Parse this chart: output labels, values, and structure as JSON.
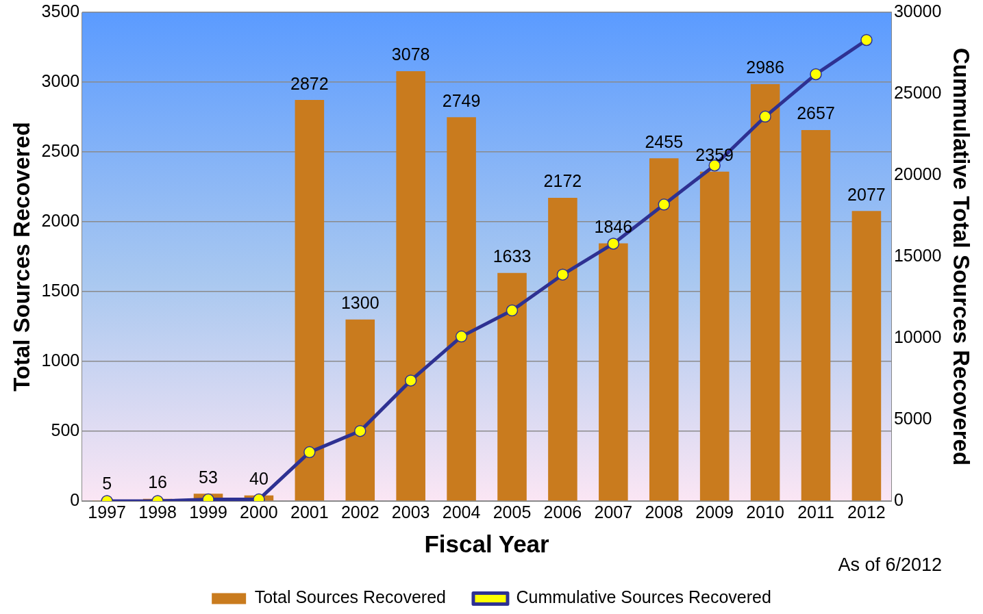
{
  "chart_data": {
    "type": "bar",
    "xlabel": "Fiscal Year",
    "ylabel": "Total Sources Recovered",
    "y2label": "Cummulative Total Sources Recovered",
    "categories": [
      "1997",
      "1998",
      "1999",
      "2000",
      "2001",
      "2002",
      "2003",
      "2004",
      "2005",
      "2006",
      "2007",
      "2008",
      "2009",
      "2010",
      "2011",
      "2012"
    ],
    "series": [
      {
        "name": "Total Sources Recovered",
        "color": "#c97b1e",
        "values": [
          5,
          16,
          53,
          40,
          2872,
          1300,
          3078,
          2749,
          1633,
          2172,
          1846,
          2455,
          2359,
          2986,
          2657,
          2077
        ],
        "value_labels": [
          "5",
          "16",
          "53",
          "40",
          "2872",
          "1300",
          "3078",
          "2749",
          "1633",
          "2172",
          "1846",
          "2455",
          "2359",
          "2986",
          "2657",
          "2077"
        ]
      },
      {
        "name": "Cummulative Sources Recovered",
        "type": "line",
        "axis": "y2",
        "color": "#2e3192",
        "marker": "circle",
        "values": [
          0,
          0,
          100,
          100,
          3000,
          4300,
          7400,
          10100,
          11700,
          13900,
          15800,
          18200,
          20600,
          23600,
          26200,
          28300
        ]
      }
    ],
    "ylim": [
      0,
      3500
    ],
    "yticks": [
      0,
      500,
      1000,
      1500,
      2000,
      2500,
      3000,
      3500
    ],
    "y2lim": [
      0,
      30000
    ],
    "y2ticks": [
      0,
      5000,
      10000,
      15000,
      20000,
      25000,
      30000
    ],
    "grid": "y",
    "legend": "bottom",
    "annotations": [
      "As of 6/2012"
    ]
  }
}
